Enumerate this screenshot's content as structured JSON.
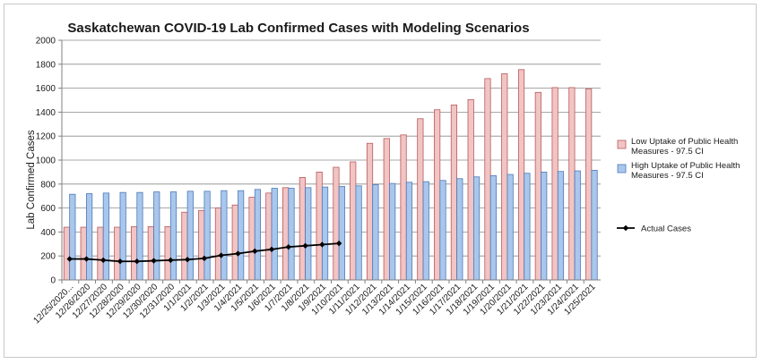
{
  "chart_data": {
    "type": "bar",
    "title": "Saskatchewan COVID-19 Lab Confirmed Cases with Modeling Scenarios",
    "xlabel": "",
    "ylabel": "Lab Confirmed Cases",
    "ylim": [
      0,
      2000
    ],
    "yticks": [
      0,
      200,
      400,
      600,
      800,
      1000,
      1200,
      1400,
      1600,
      1800,
      2000
    ],
    "grid": true,
    "legend_position": "right",
    "categories": [
      "12/25/2020...",
      "12/26/2020",
      "12/27/2020",
      "12/28/2020",
      "12/29/2020",
      "12/30/2020",
      "12/31/2020",
      "1/1/2021",
      "1/2/2021",
      "1/3/2021",
      "1/4/2021",
      "1/5/2021",
      "1/6/2021",
      "1/7/2021",
      "1/8/2021",
      "1/9/2021",
      "1/10/2021",
      "1/11/2021",
      "1/12/2021",
      "1/13/2021",
      "1/14/2021",
      "1/15/2021",
      "1/16/2021",
      "1/17/2021",
      "1/18/2021",
      "1/19/2021",
      "1/20/2021",
      "1/21/2021",
      "1/22/2021",
      "1/23/2021",
      "1/24/2021",
      "1/25/2021"
    ],
    "series": [
      {
        "name": "Low Uptake of Public Health Measures - 97.5 CI",
        "kind": "bar",
        "color": "#f2c4c4",
        "stroke": "#b85a5a",
        "values": [
          440,
          440,
          440,
          440,
          445,
          445,
          445,
          565,
          580,
          600,
          625,
          690,
          725,
          770,
          855,
          900,
          940,
          985,
          1140,
          1180,
          1210,
          1345,
          1420,
          1460,
          1505,
          1680,
          1720,
          1755,
          1565,
          1605,
          1605,
          1595
        ]
      },
      {
        "name": "High Uptake of Public Health Measures - 97.5 CI",
        "kind": "bar",
        "color": "#a9c7ec",
        "stroke": "#4f79b7",
        "values": [
          715,
          720,
          725,
          730,
          730,
          735,
          735,
          740,
          740,
          745,
          745,
          755,
          765,
          765,
          770,
          775,
          780,
          785,
          795,
          805,
          815,
          820,
          830,
          845,
          860,
          870,
          880,
          890,
          900,
          905,
          910,
          915
        ]
      },
      {
        "name": "Actual Cases",
        "kind": "line",
        "color": "#000000",
        "values": [
          175,
          175,
          165,
          155,
          155,
          160,
          165,
          170,
          180,
          205,
          220,
          240,
          255,
          275,
          285,
          295,
          305,
          null,
          null,
          null,
          null,
          null,
          null,
          null,
          null,
          null,
          null,
          null,
          null,
          null,
          null,
          null
        ]
      }
    ]
  }
}
